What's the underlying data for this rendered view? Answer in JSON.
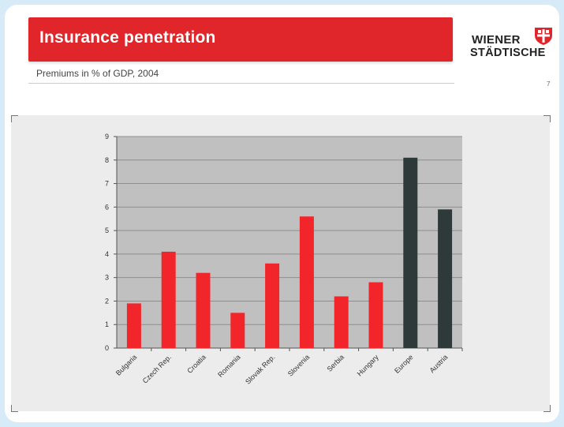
{
  "header": {
    "title": "Insurance penetration",
    "subtitle": "Premiums in % of GDP, 2004",
    "page_number": "7"
  },
  "logo": {
    "line1": "WIENER",
    "line2": "STÄDTISCHE"
  },
  "colors": {
    "accent_red": "#e0262a",
    "bar_red": "#f2262a",
    "bar_dark": "#2e3a3a",
    "plot_bg": "#c0c0c0"
  },
  "chart_data": {
    "type": "bar",
    "title": "",
    "xlabel": "",
    "ylabel": "",
    "categories": [
      "Bulgaria",
      "Czech Rep.",
      "Croatia",
      "Romania",
      "Slovak Rep.",
      "Slovenia",
      "Serbia",
      "Hungary",
      "Europe",
      "Austria"
    ],
    "values": [
      1.9,
      4.1,
      3.2,
      1.5,
      3.6,
      5.6,
      2.2,
      2.8,
      8.1,
      5.9
    ],
    "bar_colors": [
      "#f2262a",
      "#f2262a",
      "#f2262a",
      "#f2262a",
      "#f2262a",
      "#f2262a",
      "#f2262a",
      "#f2262a",
      "#2e3a3a",
      "#2e3a3a"
    ],
    "ylim": [
      0,
      9
    ],
    "yticks": [
      "0",
      "1",
      "2",
      "3",
      "4",
      "5",
      "6",
      "7",
      "8",
      "9"
    ],
    "grid": true,
    "legend": "none"
  }
}
